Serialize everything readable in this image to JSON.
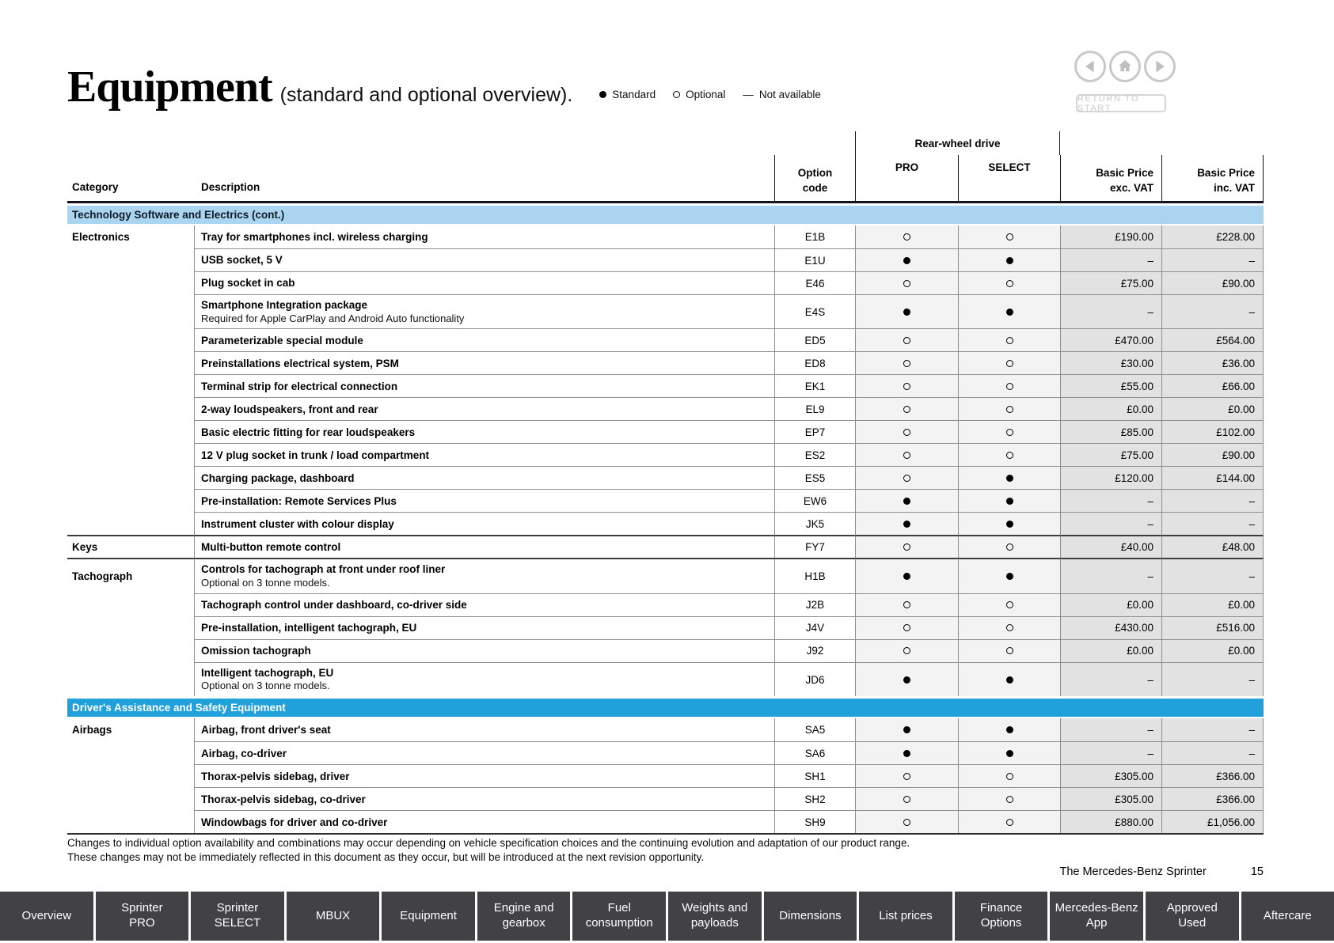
{
  "page": {
    "title": "Equipment",
    "subtitle": "(standard and optional overview).",
    "return_button": "RETURN TO START",
    "footnote1": "Changes to individual option availability and combinations may occur depending on vehicle specification choices and the continuing evolution and adaptation of our product range.",
    "footnote2": "These changes may not be immediately reflected in this document as they occur, but will be introduced at the next revision opportunity.",
    "brand_line": "The Mercedes-Benz Sprinter",
    "page_number": "15"
  },
  "legend": {
    "standard": "Standard",
    "optional": "Optional",
    "not_available_dash": "—",
    "not_available": "Not available"
  },
  "colors": {
    "section_light_bg": "#aad4f0",
    "section_dark_bg": "#21a1dc",
    "variant_col_bg": "#f3f3f3",
    "price_col_bg": "#e2e2e2",
    "nav_tab_bg": "#414146",
    "icon_gray": "#c9c9c9"
  },
  "icons": [
    "previous-arrow-icon",
    "home-icon",
    "next-arrow-icon"
  ],
  "table": {
    "headers": {
      "category": "Category",
      "description": "Description",
      "option_l1": "Option",
      "option_l2": "code",
      "rear_wheel_drive": "Rear-wheel drive",
      "pro": "PRO",
      "select": "SELECT",
      "exc_l1": "Basic Price",
      "exc_l2": "exc. VAT",
      "inc_l1": "Basic Price",
      "inc_l2": "inc. VAT"
    },
    "sections": [
      {
        "title": "Technology Software and Electrics (cont.)",
        "style": "light",
        "rows": [
          {
            "category": "Electronics",
            "desc": "Tray for smartphones incl. wireless charging",
            "code": "E1B",
            "pro": "opt",
            "sel": "opt",
            "exc": "£190.00",
            "inc": "£228.00"
          },
          {
            "desc": "USB socket, 5 V",
            "code": "E1U",
            "pro": "std",
            "sel": "std",
            "exc": "–",
            "inc": "–"
          },
          {
            "desc": "Plug socket in cab",
            "code": "E46",
            "pro": "opt",
            "sel": "opt",
            "exc": "£75.00",
            "inc": "£90.00"
          },
          {
            "desc": "Smartphone Integration package",
            "sub": "Required for Apple CarPlay and Android Auto functionality",
            "code": "E4S",
            "pro": "std",
            "sel": "std",
            "exc": "–",
            "inc": "–"
          },
          {
            "desc": "Parameterizable special module",
            "code": "ED5",
            "pro": "opt",
            "sel": "opt",
            "exc": "£470.00",
            "inc": "£564.00"
          },
          {
            "desc": "Preinstallations electrical system, PSM",
            "code": "ED8",
            "pro": "opt",
            "sel": "opt",
            "exc": "£30.00",
            "inc": "£36.00"
          },
          {
            "desc": "Terminal strip for electrical connection",
            "code": "EK1",
            "pro": "opt",
            "sel": "opt",
            "exc": "£55.00",
            "inc": "£66.00"
          },
          {
            "desc": "2-way loudspeakers, front and rear",
            "code": "EL9",
            "pro": "opt",
            "sel": "opt",
            "exc": "£0.00",
            "inc": "£0.00"
          },
          {
            "desc": "Basic electric fitting for rear loudspeakers",
            "code": "EP7",
            "pro": "opt",
            "sel": "opt",
            "exc": "£85.00",
            "inc": "£102.00"
          },
          {
            "desc": "12 V plug socket in trunk / load compartment",
            "code": "ES2",
            "pro": "opt",
            "sel": "opt",
            "exc": "£75.00",
            "inc": "£90.00"
          },
          {
            "desc": "Charging package, dashboard",
            "code": "ES5",
            "pro": "opt",
            "sel": "std",
            "exc": "£120.00",
            "inc": "£144.00"
          },
          {
            "desc": "Pre-installation: Remote Services Plus",
            "code": "EW6",
            "pro": "std",
            "sel": "std",
            "exc": "–",
            "inc": "–"
          },
          {
            "desc": "Instrument cluster with colour display",
            "code": "JK5",
            "pro": "std",
            "sel": "std",
            "exc": "–",
            "inc": "–"
          },
          {
            "category": "Keys",
            "group_start": true,
            "desc": "Multi-button remote control",
            "code": "FY7",
            "pro": "opt",
            "sel": "opt",
            "exc": "£40.00",
            "inc": "£48.00"
          },
          {
            "category": "Tachograph",
            "group_start": true,
            "desc": "Controls for tachograph at front under roof liner",
            "sub": "Optional on 3 tonne models.",
            "code": "H1B",
            "pro": "std",
            "sel": "std",
            "exc": "–",
            "inc": "–"
          },
          {
            "desc": "Tachograph control under dashboard, co-driver side",
            "code": "J2B",
            "pro": "opt",
            "sel": "opt",
            "exc": "£0.00",
            "inc": "£0.00"
          },
          {
            "desc": "Pre-installation, intelligent tachograph, EU",
            "code": "J4V",
            "pro": "opt",
            "sel": "opt",
            "exc": "£430.00",
            "inc": "£516.00"
          },
          {
            "desc": "Omission tachograph",
            "code": "J92",
            "pro": "opt",
            "sel": "opt",
            "exc": "£0.00",
            "inc": "£0.00"
          },
          {
            "desc": "Intelligent tachograph, EU",
            "sub": "Optional on 3 tonne models.",
            "code": "JD6",
            "pro": "std",
            "sel": "std",
            "exc": "–",
            "inc": "–"
          }
        ]
      },
      {
        "title": "Driver's Assistance and Safety Equipment",
        "style": "dark",
        "rows": [
          {
            "category": "Airbags",
            "desc": "Airbag, front driver's seat",
            "code": "SA5",
            "pro": "std",
            "sel": "std",
            "exc": "–",
            "inc": "–"
          },
          {
            "desc": "Airbag, co-driver",
            "code": "SA6",
            "pro": "std",
            "sel": "std",
            "exc": "–",
            "inc": "–"
          },
          {
            "desc": "Thorax-pelvis sidebag, driver",
            "code": "SH1",
            "pro": "opt",
            "sel": "opt",
            "exc": "£305.00",
            "inc": "£366.00"
          },
          {
            "desc": "Thorax-pelvis sidebag, co-driver",
            "code": "SH2",
            "pro": "opt",
            "sel": "opt",
            "exc": "£305.00",
            "inc": "£366.00"
          },
          {
            "desc": "Windowbags for driver and co-driver",
            "code": "SH9",
            "pro": "opt",
            "sel": "opt",
            "exc": "£880.00",
            "inc": "£1,056.00"
          }
        ]
      }
    ]
  },
  "nav_tabs": [
    {
      "id": "overview",
      "lines": [
        "Overview"
      ]
    },
    {
      "id": "sprinter-pro",
      "lines": [
        "Sprinter",
        "PRO"
      ]
    },
    {
      "id": "sprinter-select",
      "lines": [
        "Sprinter",
        "SELECT"
      ]
    },
    {
      "id": "mbux",
      "lines": [
        "MBUX"
      ]
    },
    {
      "id": "equipment",
      "lines": [
        "Equipment"
      ]
    },
    {
      "id": "engine-and-gearbox",
      "lines": [
        "Engine and",
        "gearbox"
      ]
    },
    {
      "id": "fuel-consumption",
      "lines": [
        "Fuel",
        "consumption"
      ]
    },
    {
      "id": "weights-and-payloads",
      "lines": [
        "Weights and",
        "payloads"
      ]
    },
    {
      "id": "dimensions",
      "lines": [
        "Dimensions"
      ]
    },
    {
      "id": "list-prices",
      "lines": [
        "List prices"
      ]
    },
    {
      "id": "finance-options",
      "lines": [
        "Finance",
        "Options"
      ]
    },
    {
      "id": "mercedes-benz-app",
      "lines": [
        "Mercedes-Benz",
        "App"
      ]
    },
    {
      "id": "approved-used",
      "lines": [
        "Approved",
        "Used"
      ]
    },
    {
      "id": "aftercare",
      "lines": [
        "Aftercare"
      ]
    }
  ]
}
